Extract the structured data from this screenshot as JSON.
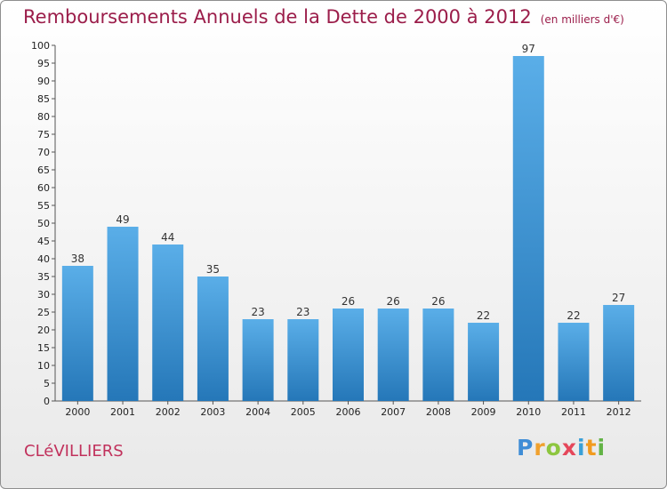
{
  "header": {
    "title": "Remboursements Annuels de la Dette de 2000 à 2012",
    "subtitle": "(en milliers d'€)"
  },
  "footer": {
    "commune": "CLéVILLIERS",
    "brand": "Proxiti"
  },
  "colors": {
    "title": "#9b1d4a",
    "bar_light": "#5aaee8",
    "bar_dark": "#2577b8"
  },
  "chart_data": {
    "type": "bar",
    "title": "Remboursements Annuels de la Dette de 2000 à 2012",
    "subtitle": "(en milliers d'€)",
    "categories": [
      "2000",
      "2001",
      "2002",
      "2003",
      "2004",
      "2005",
      "2006",
      "2007",
      "2008",
      "2009",
      "2010",
      "2011",
      "2012"
    ],
    "values": [
      38,
      49,
      44,
      35,
      23,
      23,
      26,
      26,
      26,
      22,
      97,
      22,
      27
    ],
    "ylim": [
      0,
      100
    ],
    "yticks": [
      0,
      5,
      10,
      15,
      20,
      25,
      30,
      35,
      40,
      45,
      50,
      55,
      60,
      65,
      70,
      75,
      80,
      85,
      90,
      95,
      100
    ],
    "grid": false,
    "legend": "none"
  }
}
